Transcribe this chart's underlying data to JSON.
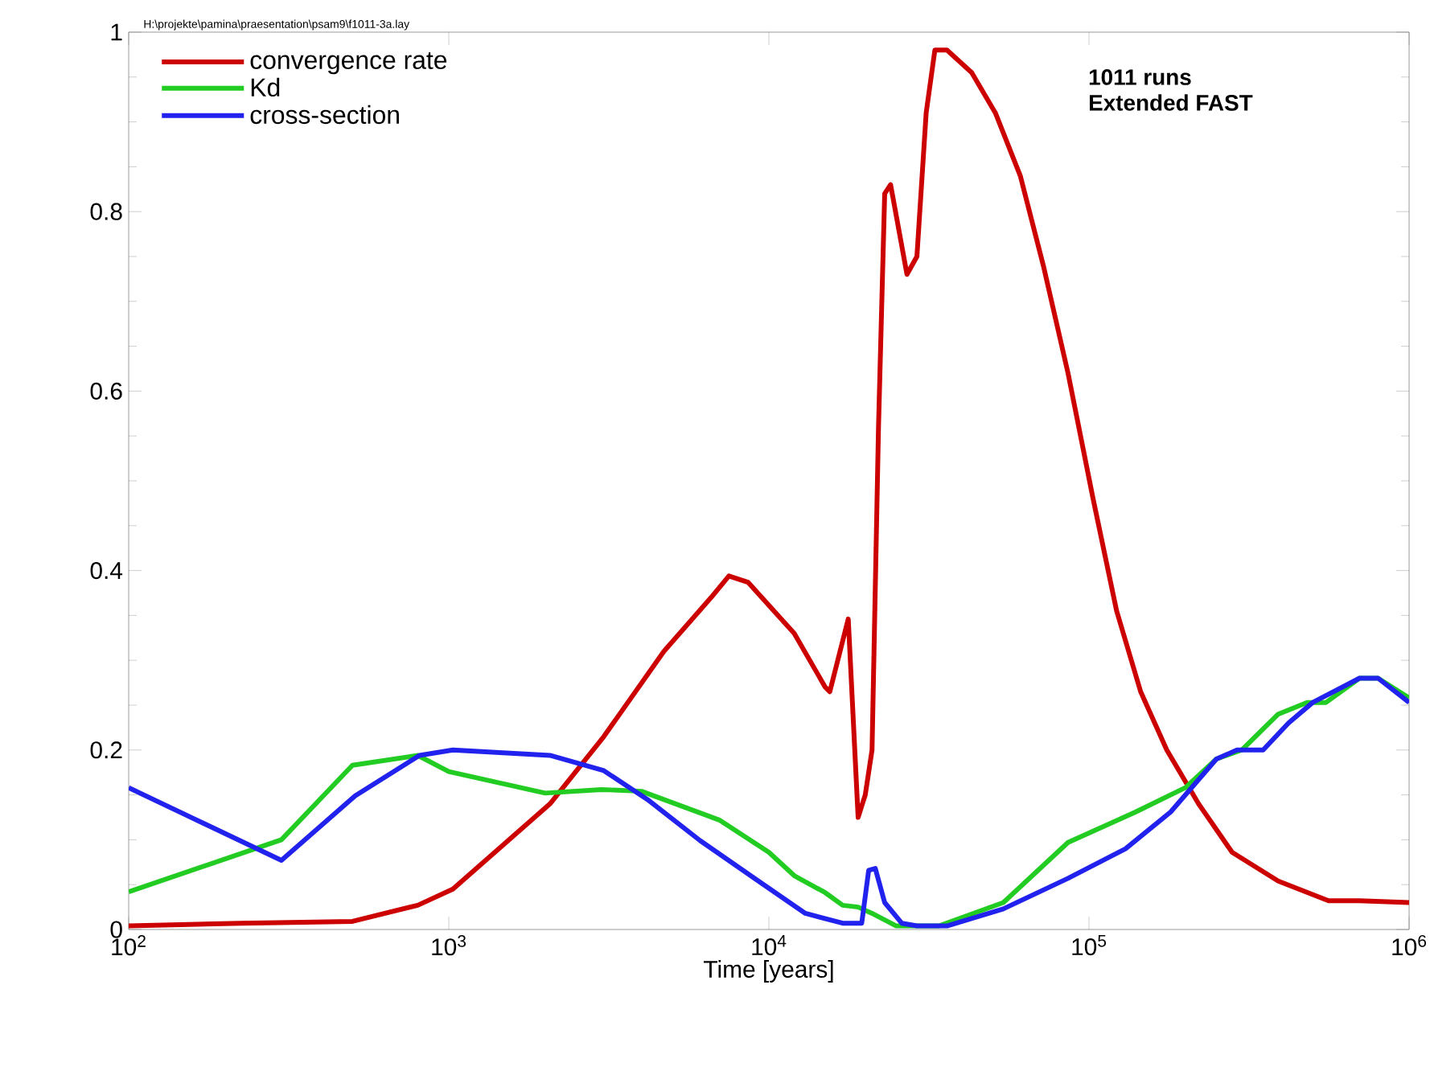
{
  "chart_data": {
    "type": "line",
    "xlabel": "Time [years]",
    "log": "x",
    "legend": "top left",
    "xlim": [
      100,
      1000000
    ],
    "ylim": [
      0,
      1
    ],
    "xticks": [
      {
        "value": 100,
        "label": "10$^{2}$"
      },
      {
        "value": 1000,
        "label": "10$^{3}$"
      },
      {
        "value": 10000,
        "label": "10$^{4}$"
      },
      {
        "value": 100000,
        "label": "10$^{5}$"
      },
      {
        "value": 1000000,
        "label": "10$^{6}$"
      }
    ],
    "yticks": [
      0,
      0.2,
      0.4,
      0.6,
      0.8,
      1
    ],
    "annotations": [
      "H:\\projekte\\pamina\\praesentation\\psam9\\f1011-3a.lay",
      "**1011 runs**",
      "**Extended FAST**"
    ],
    "series": [
      {
        "name": "convergence rate",
        "color": "#cc0000",
        "x": [
          100,
          225,
          500,
          800,
          1030,
          2070,
          3050,
          4700,
          6600,
          7500,
          8600,
          12000,
          15000,
          15500,
          17700,
          19000,
          20000,
          21000,
          22000,
          23000,
          24000,
          27000,
          29000,
          31000,
          33000,
          36000,
          43000,
          51000,
          61000,
          72000,
          86000,
          103000,
          122000,
          145000,
          175000,
          220000,
          280000,
          390000,
          560000,
          700000,
          1000000
        ],
        "values": [
          0.004,
          0.007,
          0.009,
          0.027,
          0.045,
          0.14,
          0.215,
          0.31,
          0.37,
          0.394,
          0.387,
          0.33,
          0.27,
          0.265,
          0.346,
          0.125,
          0.15,
          0.2,
          0.56,
          0.82,
          0.83,
          0.73,
          0.75,
          0.91,
          0.98,
          0.98,
          0.955,
          0.91,
          0.84,
          0.74,
          0.62,
          0.48,
          0.355,
          0.265,
          0.2,
          0.14,
          0.086,
          0.054,
          0.032,
          0.032,
          0.03
        ]
      },
      {
        "name": "Kd",
        "color": "#22cc22",
        "x": [
          100,
          300,
          500,
          800,
          1000,
          2000,
          3000,
          4000,
          7000,
          10000,
          12000,
          15000,
          17000,
          19000,
          21000,
          25000,
          34000,
          54000,
          86000,
          140000,
          200000,
          250000,
          300000,
          390000,
          480000,
          550000,
          700000,
          800000,
          1000000
        ],
        "values": [
          0.042,
          0.1,
          0.183,
          0.194,
          0.176,
          0.152,
          0.156,
          0.154,
          0.122,
          0.086,
          0.06,
          0.041,
          0.027,
          0.025,
          0.018,
          0.004,
          0.004,
          0.03,
          0.097,
          0.131,
          0.158,
          0.19,
          0.2,
          0.24,
          0.253,
          0.253,
          0.28,
          0.28,
          0.258
        ]
      },
      {
        "name": "cross-section",
        "color": "#2222ee",
        "x": [
          100,
          300,
          510,
          810,
          1030,
          2070,
          3050,
          4170,
          6100,
          9100,
          13000,
          17000,
          19500,
          20500,
          21500,
          23000,
          26000,
          29000,
          36000,
          54000,
          86000,
          130000,
          180000,
          250000,
          290000,
          350000,
          420000,
          500000,
          700000,
          800000,
          1000000
        ],
        "values": [
          0.158,
          0.077,
          0.149,
          0.194,
          0.2,
          0.194,
          0.177,
          0.145,
          0.099,
          0.056,
          0.018,
          0.007,
          0.007,
          0.066,
          0.068,
          0.03,
          0.007,
          0.004,
          0.004,
          0.023,
          0.057,
          0.09,
          0.131,
          0.19,
          0.2,
          0.2,
          0.23,
          0.253,
          0.28,
          0.28,
          0.253
        ]
      }
    ]
  }
}
